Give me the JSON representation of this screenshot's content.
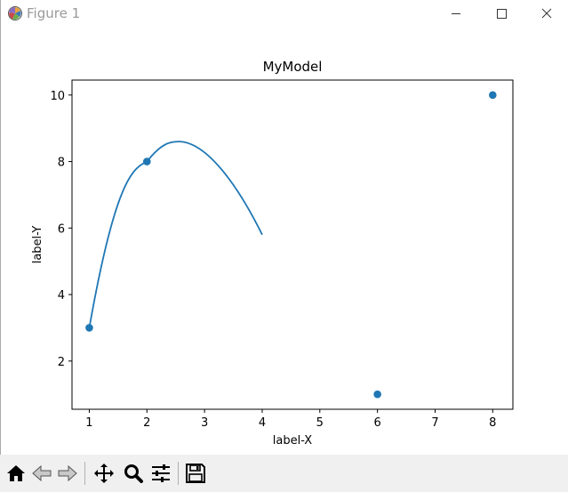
{
  "window": {
    "title": "Figure 1",
    "icon": "matplotlib-figure-icon",
    "controls": [
      "minimize-icon",
      "maximize-icon",
      "close-icon"
    ]
  },
  "toolbar": {
    "buttons": [
      "home-icon",
      "back-icon",
      "forward-icon",
      "pan-icon",
      "zoom-icon",
      "configure-subplots-icon",
      "save-icon"
    ]
  },
  "colors": {
    "series": "#1f77b4",
    "axes": "#000000",
    "toolbar_bg": "#f0f0f0",
    "title_text": "#9a9a9a"
  },
  "chart_data": {
    "type": "scatter",
    "title": "MyModel",
    "xlabel": "label-X",
    "ylabel": "label-Y",
    "xlim": [
      0.7,
      8.35
    ],
    "ylim": [
      0.55,
      10.45
    ],
    "xticks": [
      1,
      2,
      3,
      4,
      5,
      6,
      7,
      8
    ],
    "yticks": [
      2,
      4,
      6,
      8,
      10
    ],
    "grid": false,
    "points": {
      "x": [
        1,
        2,
        6,
        8
      ],
      "y": [
        3,
        8,
        1,
        10
      ]
    },
    "curve": {
      "type": "line",
      "x_range": [
        1,
        4
      ],
      "fit_points": [
        [
          1,
          3
        ],
        [
          2,
          8
        ],
        [
          2.55,
          8.6
        ],
        [
          4,
          5.8
        ]
      ]
    }
  }
}
